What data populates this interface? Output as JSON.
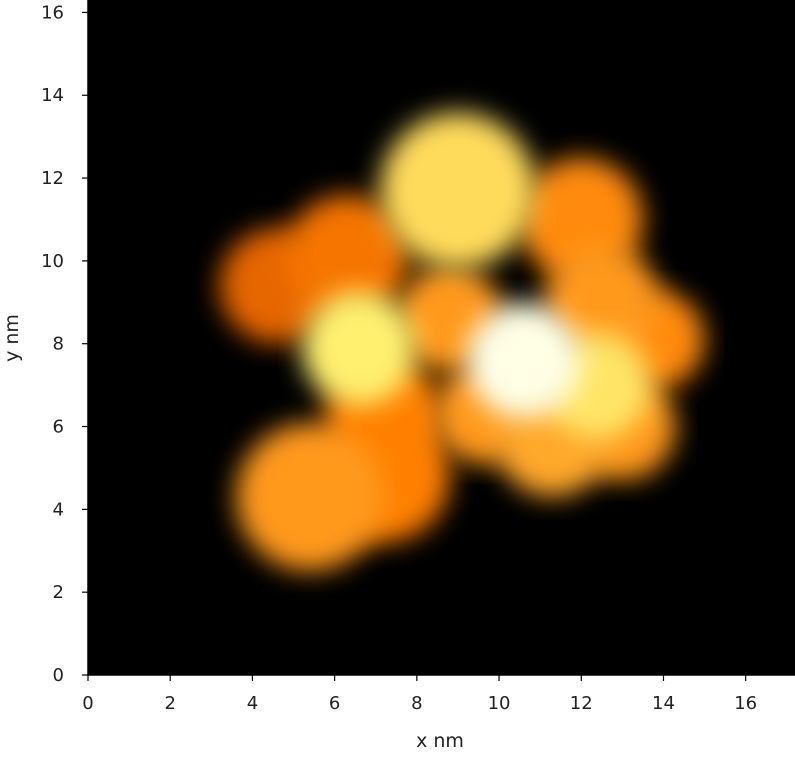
{
  "chart_data": {
    "type": "heatmap",
    "title": "",
    "xlabel": "x nm",
    "ylabel": "y nm",
    "xlim": [
      0,
      17.2
    ],
    "ylim": [
      0,
      16.3
    ],
    "x_ticks": [
      "0",
      "2",
      "4",
      "6",
      "8",
      "10",
      "12",
      "14",
      "16"
    ],
    "y_ticks": [
      "0",
      "2",
      "4",
      "6",
      "8",
      "10",
      "12",
      "14",
      "16"
    ],
    "grid": false,
    "legend": "none",
    "colormap": "afmhot",
    "background_color": "#000000",
    "height_blobs": [
      {
        "x": 5.4,
        "y": 4.3,
        "r": 1.8,
        "intensity": 0.55
      },
      {
        "x": 7.2,
        "y": 4.8,
        "r": 1.6,
        "intensity": 0.5
      },
      {
        "x": 4.6,
        "y": 9.4,
        "r": 1.4,
        "intensity": 0.45
      },
      {
        "x": 6.3,
        "y": 10.1,
        "r": 1.5,
        "intensity": 0.48
      },
      {
        "x": 9.0,
        "y": 11.7,
        "r": 1.9,
        "intensity": 0.68
      },
      {
        "x": 12.0,
        "y": 11.0,
        "r": 1.5,
        "intensity": 0.52
      },
      {
        "x": 12.5,
        "y": 9.0,
        "r": 1.4,
        "intensity": 0.55
      },
      {
        "x": 13.8,
        "y": 8.1,
        "r": 1.2,
        "intensity": 0.52
      },
      {
        "x": 6.6,
        "y": 7.9,
        "r": 1.4,
        "intensity": 0.72
      },
      {
        "x": 7.2,
        "y": 6.3,
        "r": 1.4,
        "intensity": 0.5
      },
      {
        "x": 8.8,
        "y": 8.6,
        "r": 1.3,
        "intensity": 0.55
      },
      {
        "x": 10.6,
        "y": 7.6,
        "r": 1.4,
        "intensity": 0.95
      },
      {
        "x": 12.4,
        "y": 7.0,
        "r": 1.3,
        "intensity": 0.7
      },
      {
        "x": 11.3,
        "y": 5.7,
        "r": 1.4,
        "intensity": 0.58
      },
      {
        "x": 13.0,
        "y": 6.0,
        "r": 1.3,
        "intensity": 0.55
      },
      {
        "x": 9.6,
        "y": 6.3,
        "r": 1.2,
        "intensity": 0.55
      }
    ]
  }
}
